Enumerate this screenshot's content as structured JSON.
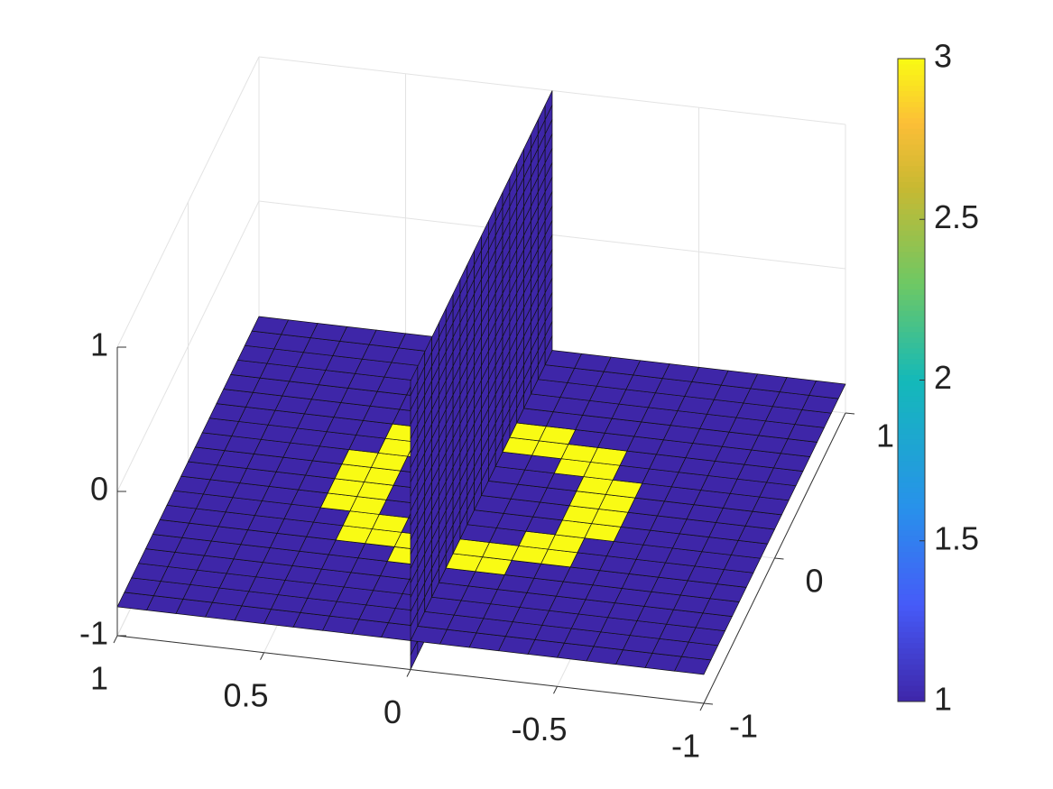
{
  "chart_data": {
    "type": "slice3d",
    "xlim": [
      -1,
      1
    ],
    "ylim": [
      -1,
      1
    ],
    "zlim": [
      -1,
      1
    ],
    "xticks": [
      -1,
      -0.5,
      0,
      0.5,
      1
    ],
    "yticks": [
      -1,
      0,
      1
    ],
    "zticks": [
      -1,
      0,
      1
    ],
    "grid": true,
    "colormap": "parula",
    "clim": [
      1,
      3
    ],
    "cticks": [
      1,
      1.5,
      2,
      2.5,
      3
    ],
    "slices": [
      {
        "axis": "z",
        "position": -0.8,
        "values": [
          [
            1,
            1,
            1,
            1,
            1,
            1,
            1,
            1,
            1,
            1,
            1,
            1,
            1,
            1,
            1,
            1,
            1,
            1,
            1,
            1
          ],
          [
            1,
            1,
            1,
            1,
            1,
            1,
            1,
            1,
            1,
            1,
            1,
            1,
            1,
            1,
            1,
            1,
            1,
            1,
            1,
            1
          ],
          [
            1,
            1,
            1,
            1,
            1,
            1,
            1,
            1,
            1,
            1,
            1,
            1,
            1,
            1,
            1,
            1,
            1,
            1,
            1,
            1
          ],
          [
            1,
            1,
            1,
            1,
            1,
            1,
            1,
            1,
            1,
            1,
            1,
            1,
            1,
            1,
            1,
            1,
            1,
            1,
            1,
            1
          ],
          [
            1,
            1,
            1,
            1,
            1,
            1,
            1,
            1,
            1,
            1,
            1,
            1,
            1,
            1,
            1,
            1,
            1,
            1,
            1,
            1
          ],
          [
            1,
            1,
            1,
            1,
            1,
            1,
            1,
            1,
            3,
            3,
            3,
            3,
            1,
            1,
            1,
            1,
            1,
            1,
            1,
            1
          ],
          [
            1,
            1,
            1,
            1,
            1,
            1,
            3,
            3,
            3,
            3,
            3,
            3,
            3,
            3,
            1,
            1,
            1,
            1,
            1,
            1
          ],
          [
            1,
            1,
            1,
            1,
            1,
            1,
            3,
            3,
            1,
            1,
            1,
            1,
            3,
            3,
            1,
            1,
            1,
            1,
            1,
            1
          ],
          [
            1,
            1,
            1,
            1,
            1,
            3,
            3,
            1,
            1,
            1,
            1,
            1,
            1,
            3,
            3,
            1,
            1,
            1,
            1,
            1
          ],
          [
            1,
            1,
            1,
            1,
            1,
            3,
            3,
            1,
            1,
            1,
            1,
            1,
            1,
            3,
            3,
            1,
            1,
            1,
            1,
            1
          ],
          [
            1,
            1,
            1,
            1,
            1,
            3,
            3,
            1,
            1,
            1,
            1,
            1,
            1,
            3,
            3,
            1,
            1,
            1,
            1,
            1
          ],
          [
            1,
            1,
            1,
            1,
            1,
            3,
            3,
            1,
            1,
            1,
            1,
            1,
            1,
            3,
            3,
            1,
            1,
            1,
            1,
            1
          ],
          [
            1,
            1,
            1,
            1,
            1,
            1,
            3,
            3,
            1,
            1,
            1,
            1,
            3,
            3,
            1,
            1,
            1,
            1,
            1,
            1
          ],
          [
            1,
            1,
            1,
            1,
            1,
            1,
            3,
            3,
            3,
            3,
            3,
            3,
            3,
            3,
            1,
            1,
            1,
            1,
            1,
            1
          ],
          [
            1,
            1,
            1,
            1,
            1,
            1,
            1,
            1,
            3,
            3,
            3,
            3,
            1,
            1,
            1,
            1,
            1,
            1,
            1,
            1
          ],
          [
            1,
            1,
            1,
            1,
            1,
            1,
            1,
            1,
            1,
            1,
            1,
            1,
            1,
            1,
            1,
            1,
            1,
            1,
            1,
            1
          ],
          [
            1,
            1,
            1,
            1,
            1,
            1,
            1,
            1,
            1,
            1,
            1,
            1,
            1,
            1,
            1,
            1,
            1,
            1,
            1,
            1
          ],
          [
            1,
            1,
            1,
            1,
            1,
            1,
            1,
            1,
            1,
            1,
            1,
            1,
            1,
            1,
            1,
            1,
            1,
            1,
            1,
            1
          ],
          [
            1,
            1,
            1,
            1,
            1,
            1,
            1,
            1,
            1,
            1,
            1,
            1,
            1,
            1,
            1,
            1,
            1,
            1,
            1,
            1
          ],
          [
            1,
            1,
            1,
            1,
            1,
            1,
            1,
            1,
            1,
            1,
            1,
            1,
            1,
            1,
            1,
            1,
            1,
            1,
            1,
            1
          ]
        ]
      },
      {
        "axis": "x",
        "position": 0,
        "values": [
          [
            1,
            1,
            1,
            1,
            1,
            1,
            1,
            1,
            1,
            1,
            1,
            1,
            1,
            1,
            1,
            1,
            1,
            1,
            1,
            1
          ],
          [
            1,
            1,
            1,
            1,
            1,
            1,
            1,
            1,
            1,
            1,
            1,
            1,
            1,
            1,
            1,
            1,
            1,
            1,
            1,
            1
          ],
          [
            1,
            1,
            1,
            1,
            1,
            1,
            1,
            1,
            1,
            1,
            1,
            1,
            1,
            1,
            1,
            1,
            1,
            1,
            1,
            1
          ],
          [
            1,
            1,
            1,
            1,
            1,
            1,
            1,
            1,
            1,
            1,
            1,
            1,
            1,
            1,
            1,
            1,
            1,
            1,
            1,
            1
          ],
          [
            1,
            1,
            1,
            1,
            1,
            1,
            1,
            1,
            1,
            1,
            1,
            1,
            1,
            1,
            1,
            1,
            1,
            1,
            1,
            1
          ],
          [
            1,
            1,
            1,
            1,
            1,
            1,
            1,
            1,
            1,
            1,
            1,
            1,
            1,
            1,
            1,
            1,
            1,
            1,
            1,
            1
          ],
          [
            1,
            1,
            1,
            1,
            1,
            1,
            1,
            1,
            1,
            1,
            1,
            1,
            1,
            1,
            1,
            1,
            1,
            1,
            1,
            1
          ],
          [
            1,
            1,
            1,
            1,
            1,
            1,
            1,
            1,
            1,
            1,
            1,
            1,
            1,
            1,
            1,
            1,
            1,
            1,
            1,
            1
          ],
          [
            1,
            1,
            1,
            1,
            1,
            1,
            1,
            1,
            1,
            1,
            1,
            1,
            1,
            1,
            1,
            1,
            1,
            1,
            1,
            1
          ],
          [
            1,
            1,
            1,
            1,
            1,
            1,
            1,
            1,
            1,
            1,
            1,
            1,
            1,
            1,
            1,
            1,
            1,
            1,
            1,
            1
          ],
          [
            1,
            1,
            1,
            1,
            1,
            1,
            1,
            1,
            1,
            1,
            1,
            1,
            1,
            1,
            1,
            1,
            1,
            1,
            1,
            1
          ],
          [
            1,
            1,
            1,
            1,
            1,
            1,
            1,
            1,
            1,
            1,
            1,
            1,
            1,
            1,
            1,
            1,
            1,
            1,
            1,
            1
          ],
          [
            1,
            1,
            1,
            1,
            1,
            1,
            1,
            1,
            1,
            1,
            1,
            1,
            1,
            1,
            1,
            1,
            1,
            1,
            1,
            1
          ],
          [
            1,
            1,
            1,
            1,
            1,
            1,
            1,
            1,
            1,
            1,
            1,
            1,
            1,
            1,
            1,
            1,
            1,
            1,
            1,
            1
          ],
          [
            1,
            1,
            1,
            1,
            1,
            1,
            1,
            1,
            1,
            1,
            1,
            1,
            1,
            1,
            1,
            1,
            1,
            1,
            1,
            1
          ],
          [
            1,
            1,
            1,
            1,
            1,
            1,
            1,
            1,
            1,
            1,
            1,
            1,
            1,
            1,
            1,
            1,
            1,
            1,
            1,
            1
          ],
          [
            1,
            1,
            1,
            1,
            1,
            1,
            1,
            1,
            1,
            1,
            1,
            1,
            1,
            1,
            1,
            1,
            1,
            1,
            1,
            1
          ],
          [
            1,
            1,
            1,
            1,
            1,
            1,
            1,
            1,
            1,
            1,
            1,
            1,
            1,
            1,
            1,
            1,
            1,
            1,
            1,
            1
          ],
          [
            1,
            1,
            1,
            1,
            1,
            1,
            1,
            1,
            1,
            1,
            1,
            1,
            1,
            1,
            1,
            1,
            1,
            1,
            1,
            1
          ],
          [
            1,
            1,
            1,
            1,
            1,
            1,
            1,
            1,
            1,
            1,
            1,
            1,
            1,
            1,
            1,
            1,
            1,
            1,
            1,
            1
          ]
        ]
      }
    ]
  }
}
